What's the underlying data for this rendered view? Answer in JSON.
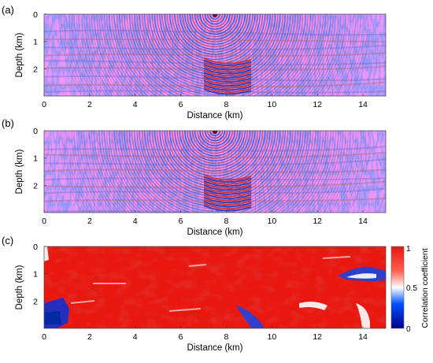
{
  "chart_data": [
    {
      "panel_label": "(a)",
      "type": "heatmap",
      "content": "seismic wavefield snapshot",
      "xlabel": "Distance (km)",
      "ylabel": "Depth (km)",
      "xlim": [
        0,
        15
      ],
      "ylim": [
        0,
        3
      ],
      "x_ticks": [
        "0",
        "2",
        "4",
        "6",
        "8",
        "10",
        "12",
        "14"
      ],
      "y_ticks": [
        "0",
        "1",
        "2"
      ],
      "source_x_km": 7.5,
      "colormap": [
        "#0000ff",
        "#ffffff",
        "#ff0000"
      ]
    },
    {
      "panel_label": "(b)",
      "type": "heatmap",
      "content": "seismic wavefield snapshot",
      "xlabel": "Distance (km)",
      "ylabel": "Depth (km)",
      "xlim": [
        0,
        15
      ],
      "ylim": [
        0,
        3
      ],
      "x_ticks": [
        "0",
        "2",
        "4",
        "6",
        "8",
        "10",
        "12",
        "14"
      ],
      "y_ticks": [
        "0",
        "1",
        "2"
      ],
      "source_x_km": 7.5,
      "colormap": [
        "#0000ff",
        "#ffffff",
        "#ff0000"
      ]
    },
    {
      "panel_label": "(c)",
      "type": "heatmap",
      "content": "correlation coefficient map",
      "xlabel": "Distance (km)",
      "ylabel": "Depth (km)",
      "xlim": [
        0,
        15
      ],
      "ylim": [
        0,
        3
      ],
      "x_ticks": [
        "0",
        "2",
        "4",
        "6",
        "8",
        "10",
        "12",
        "14"
      ],
      "y_ticks": [
        "0",
        "1",
        "2"
      ],
      "colorbar": {
        "label": "Correlation coefficient",
        "range": [
          0,
          1
        ],
        "ticks": [
          "0",
          "0.5",
          "1"
        ],
        "colormap": [
          "#00008c",
          "#0050ff",
          "#ffffff",
          "#ff6050",
          "#e8150f"
        ]
      }
    }
  ]
}
